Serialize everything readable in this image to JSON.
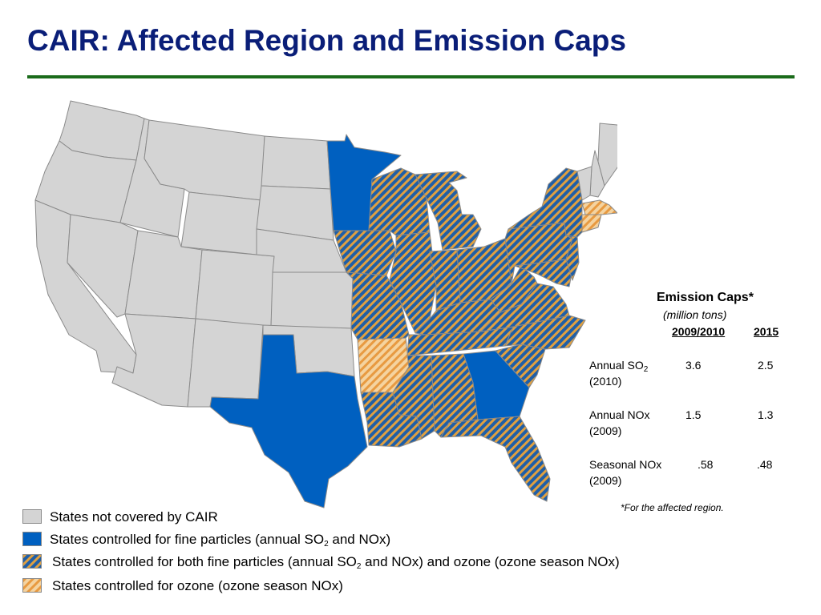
{
  "title": "CAIR: Affected Region and Emission Caps",
  "colors": {
    "title": "#0a1e78",
    "rule": "#1a6b1a",
    "not_covered": "#d4d4d4",
    "fine_particles": "#0060c0",
    "both_base": "#1f5fa8",
    "both_stripe": "#e0a040",
    "ozone_base": "#f0c890",
    "ozone_stripe": "#e89a40",
    "state_border": "#8a8a8a"
  },
  "emission_caps": {
    "heading": "Emission Caps*",
    "unit": "(million tons)",
    "columns": [
      "2009/2010",
      "2015"
    ],
    "rows": [
      {
        "label": "Annual SO",
        "sub": "2",
        "year": "(2010)",
        "v2010": "3.6",
        "v2015": "2.5"
      },
      {
        "label": "Annual NOx",
        "sub": "",
        "year": "(2009)",
        "v2010": "1.5",
        "v2015": "1.3"
      },
      {
        "label": "Seasonal NOx",
        "sub": "",
        "year": "(2009)",
        "v2010": ".58",
        "v2015": ".48"
      }
    ],
    "footnote": "*For the affected region."
  },
  "legend": [
    {
      "key": "not_covered",
      "parts": [
        "States not covered by CAIR"
      ]
    },
    {
      "key": "fine_particles",
      "parts": [
        "States controlled for fine particles (annual SO",
        "2",
        " and NOx)"
      ]
    },
    {
      "key": "both",
      "parts": [
        "States controlled for both fine particles (annual SO",
        "2",
        " and NOx) and ozone (ozone season NOx)"
      ]
    },
    {
      "key": "ozone",
      "parts": [
        "States controlled for ozone (ozone season NOx)"
      ]
    }
  ]
}
